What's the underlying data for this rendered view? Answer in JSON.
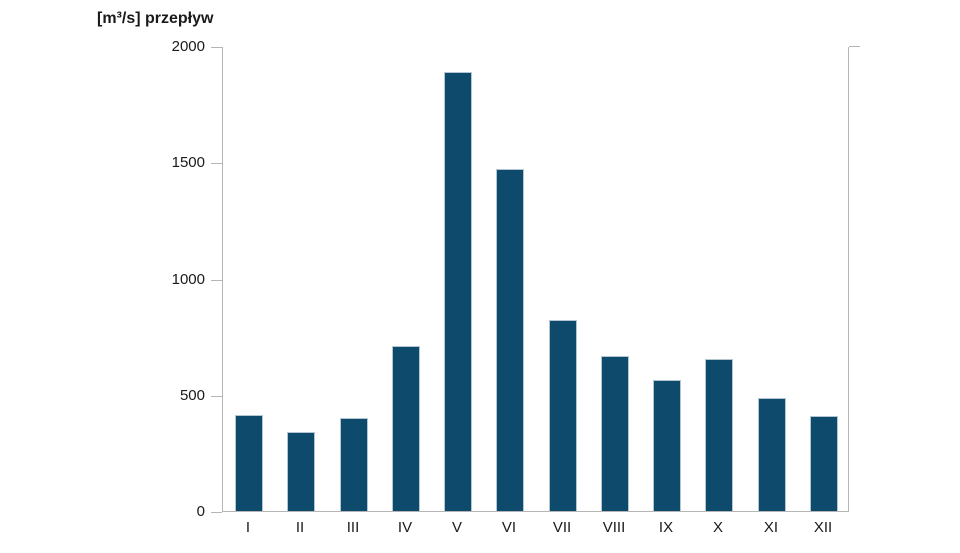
{
  "chart_data": {
    "type": "bar",
    "title": "[m³/s] przepływ",
    "ylabel": "[m³/s] przepływ",
    "xlabel": "",
    "categories": [
      "I",
      "II",
      "III",
      "IV",
      "V",
      "VI",
      "VII",
      "VIII",
      "IX",
      "X",
      "XI",
      "XII"
    ],
    "values": [
      415,
      340,
      400,
      710,
      1890,
      1470,
      820,
      665,
      565,
      655,
      485,
      410
    ],
    "ylim": [
      0,
      2000
    ],
    "yticks": [
      0,
      500,
      1000,
      1500,
      2000
    ],
    "grid": false,
    "legend": null,
    "bar_color": "#0d4a6b",
    "bar_border_color": "#b3c6d2",
    "axis_color": "#b5b5b5",
    "text_color": "#1a1a1a"
  }
}
